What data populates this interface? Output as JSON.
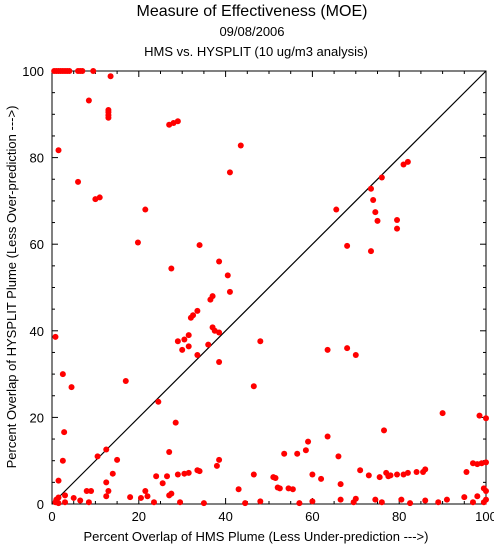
{
  "chart_data": {
    "type": "scatter",
    "title": "Measure of Effectiveness (MOE)",
    "subtitle_date": "09/08/2006",
    "subtitle_analysis": "HMS vs. HYSPLIT  (10 ug/m3 analysis)",
    "xlabel": "Percent Overlap of HMS Plume (Less Under-prediction --->)",
    "ylabel": "Percent Overlap of HYSPLIT Plume (Less Over-prediction --->)",
    "xlim": [
      0,
      100
    ],
    "ylim": [
      0,
      100
    ],
    "x_ticks": [
      "0",
      "20",
      "40",
      "60",
      "80",
      "100"
    ],
    "y_ticks": [
      "0",
      "20",
      "40",
      "60",
      "80",
      "100"
    ],
    "diagonal_line": true,
    "grid": false,
    "point_color": "#ff0000",
    "points": [
      [
        0.5,
        100
      ],
      [
        1,
        100
      ],
      [
        1.5,
        100
      ],
      [
        2,
        100
      ],
      [
        2.5,
        100
      ],
      [
        3,
        100
      ],
      [
        3.5,
        100
      ],
      [
        4,
        100
      ],
      [
        6,
        100
      ],
      [
        6.5,
        100
      ],
      [
        7,
        100
      ],
      [
        9.5,
        100
      ],
      [
        13.5,
        98.8
      ],
      [
        8.5,
        93.2
      ],
      [
        13,
        91
      ],
      [
        13,
        90.5
      ],
      [
        13,
        89.8
      ],
      [
        13,
        89.2
      ],
      [
        1.5,
        81.7
      ],
      [
        6,
        74.4
      ],
      [
        11,
        70.8
      ],
      [
        10,
        70.4
      ],
      [
        21.5,
        68
      ],
      [
        19.8,
        60.4
      ],
      [
        27,
        87.6
      ],
      [
        28,
        88
      ],
      [
        29,
        88.4
      ],
      [
        43.5,
        82.8
      ],
      [
        41,
        76.6
      ],
      [
        27.5,
        54.4
      ],
      [
        34,
        59.8
      ],
      [
        38.5,
        56
      ],
      [
        40.5,
        52.8
      ],
      [
        37,
        48
      ],
      [
        36.5,
        47.2
      ],
      [
        41,
        49
      ],
      [
        33.5,
        44.6
      ],
      [
        32.5,
        43.6
      ],
      [
        32,
        43
      ],
      [
        37,
        40.8
      ],
      [
        37.5,
        40
      ],
      [
        38.5,
        39.6
      ],
      [
        31.5,
        39
      ],
      [
        30.5,
        38
      ],
      [
        29,
        37.6
      ],
      [
        30,
        35.6
      ],
      [
        31.5,
        36.4
      ],
      [
        33.5,
        34.4
      ],
      [
        36,
        36.8
      ],
      [
        38.5,
        32.8
      ],
      [
        48,
        37.6
      ],
      [
        0.8,
        38.6
      ],
      [
        2.5,
        30
      ],
      [
        4.5,
        27
      ],
      [
        17,
        28.4
      ],
      [
        24.5,
        23.6
      ],
      [
        28.5,
        18.8
      ],
      [
        46.5,
        27.2
      ],
      [
        63.5,
        35.6
      ],
      [
        68,
        36
      ],
      [
        70,
        34.4
      ],
      [
        65.5,
        68
      ],
      [
        68,
        59.6
      ],
      [
        73.5,
        72.8
      ],
      [
        74,
        70.2
      ],
      [
        74.5,
        67.4
      ],
      [
        75,
        65.4
      ],
      [
        76,
        75.4
      ],
      [
        73.5,
        58.4
      ],
      [
        81,
        78.4
      ],
      [
        82,
        79
      ],
      [
        79.5,
        65.6
      ],
      [
        79.5,
        63.6
      ],
      [
        2.8,
        16.6
      ],
      [
        1.5,
        5.4
      ],
      [
        2.5,
        10
      ],
      [
        10.5,
        11
      ],
      [
        12.5,
        12.6
      ],
      [
        15,
        10.2
      ],
      [
        14,
        7
      ],
      [
        12.5,
        5
      ],
      [
        9,
        3
      ],
      [
        8,
        3
      ],
      [
        12.5,
        1.8
      ],
      [
        13,
        3
      ],
      [
        3,
        2
      ],
      [
        1.5,
        1.5
      ],
      [
        1,
        1
      ],
      [
        0.8,
        0.4
      ],
      [
        1.5,
        0.2
      ],
      [
        3,
        0.4
      ],
      [
        5,
        1.4
      ],
      [
        6.5,
        0.8
      ],
      [
        8.5,
        0.4
      ],
      [
        20.5,
        1.4
      ],
      [
        18,
        1.6
      ],
      [
        21.5,
        3
      ],
      [
        22,
        1.8
      ],
      [
        24,
        6.4
      ],
      [
        25.5,
        4.8
      ],
      [
        26.5,
        6.4
      ],
      [
        27,
        12
      ],
      [
        27.5,
        2.4
      ],
      [
        27,
        2
      ],
      [
        29,
        6.8
      ],
      [
        30.5,
        7
      ],
      [
        31.5,
        7.2
      ],
      [
        33.5,
        7.8
      ],
      [
        34,
        7.6
      ],
      [
        38,
        8.8
      ],
      [
        38.5,
        10.2
      ],
      [
        43,
        3.4
      ],
      [
        46.5,
        6.8
      ],
      [
        52,
        3.8
      ],
      [
        52.5,
        3.6
      ],
      [
        53.5,
        11.6
      ],
      [
        54.5,
        3.6
      ],
      [
        55.5,
        3.4
      ],
      [
        51.5,
        6
      ],
      [
        51,
        6.2
      ],
      [
        56.5,
        11.6
      ],
      [
        58.5,
        12.4
      ],
      [
        59,
        14.4
      ],
      [
        60,
        6.8
      ],
      [
        62,
        5.8
      ],
      [
        63.5,
        15.6
      ],
      [
        66,
        11
      ],
      [
        66.5,
        1
      ],
      [
        66.5,
        4.6
      ],
      [
        69.5,
        0.4
      ],
      [
        71,
        7.8
      ],
      [
        70,
        1.2
      ],
      [
        73,
        6.6
      ],
      [
        74.5,
        1
      ],
      [
        75.5,
        6.2
      ],
      [
        76,
        0.4
      ],
      [
        77,
        7.2
      ],
      [
        77.5,
        6.4
      ],
      [
        78,
        6.6
      ],
      [
        76.5,
        17
      ],
      [
        79.5,
        6.8
      ],
      [
        80.5,
        1
      ],
      [
        81,
        6.8
      ],
      [
        82,
        7.2
      ],
      [
        82.5,
        0.2
      ],
      [
        84,
        7.4
      ],
      [
        85.5,
        7.4
      ],
      [
        86,
        8
      ],
      [
        86,
        0.8
      ],
      [
        89,
        0.4
      ],
      [
        90,
        21
      ],
      [
        91,
        1
      ],
      [
        95.5,
        7.4
      ],
      [
        95,
        1.6
      ],
      [
        97,
        9.4
      ],
      [
        98,
        9.2
      ],
      [
        99,
        9.4
      ],
      [
        100,
        9.6
      ],
      [
        98.5,
        20.4
      ],
      [
        100,
        19.8
      ],
      [
        99.5,
        3.6
      ],
      [
        100,
        3
      ],
      [
        100,
        1
      ],
      [
        99.5,
        0.4
      ],
      [
        98,
        1.8
      ],
      [
        97,
        0.4
      ],
      [
        60,
        0.6
      ],
      [
        57,
        0.2
      ],
      [
        48,
        0.6
      ],
      [
        44.5,
        0.2
      ],
      [
        35,
        0.2
      ],
      [
        29.5,
        0.4
      ],
      [
        23.5,
        0.4
      ]
    ]
  }
}
